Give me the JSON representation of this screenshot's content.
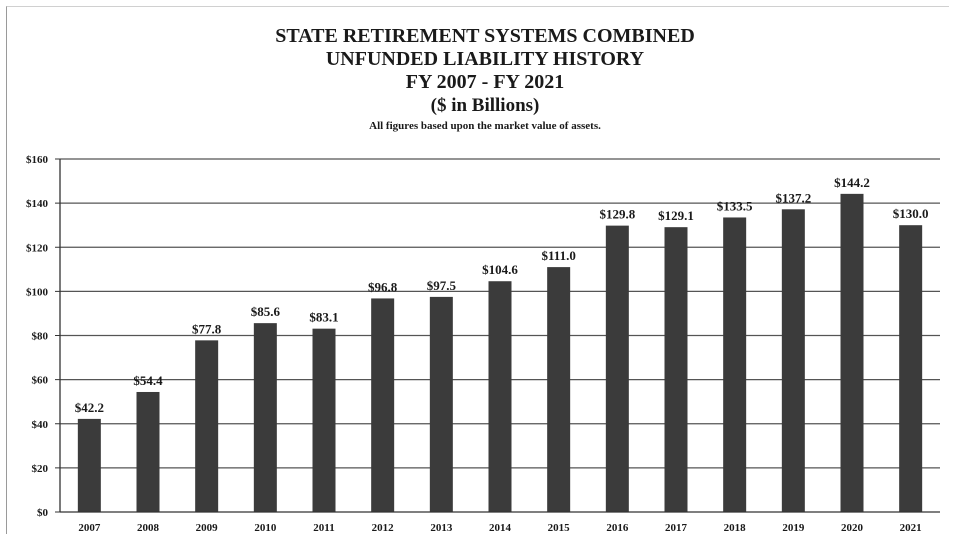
{
  "chart_data": {
    "type": "bar",
    "title_lines": [
      "STATE RETIREMENT SYSTEMS COMBINED",
      "UNFUNDED LIABILITY HISTORY",
      "FY 2007 - FY 2021",
      "($ in Billions)"
    ],
    "note": "All figures based upon the market value of assets.",
    "xlabel": "",
    "ylabel": "",
    "categories": [
      "2007",
      "2008",
      "2009",
      "2010",
      "2011",
      "2012",
      "2013",
      "2014",
      "2015",
      "2016",
      "2017",
      "2018",
      "2019",
      "2020",
      "2021"
    ],
    "values": [
      42.2,
      54.4,
      77.8,
      85.6,
      83.1,
      96.8,
      97.5,
      104.6,
      111.0,
      129.8,
      129.1,
      133.5,
      137.2,
      144.2,
      130.0
    ],
    "value_labels": [
      "$42.2",
      "$54.4",
      "$77.8",
      "$85.6",
      "$83.1",
      "$96.8",
      "$97.5",
      "$104.6",
      "$111.0",
      "$129.8",
      "$129.1",
      "$133.5",
      "$137.2",
      "$144.2",
      "$130.0"
    ],
    "ylim": [
      0,
      160
    ],
    "y_ticks": [
      0,
      20,
      40,
      60,
      80,
      100,
      120,
      140,
      160
    ],
    "y_tick_labels": [
      "$0",
      "$20",
      "$40",
      "$60",
      "$80",
      "$100",
      "$120",
      "$140",
      "$160"
    ],
    "grid": true,
    "legend": "none",
    "colors": {
      "bar": "#3b3b3b",
      "grid": "#555555",
      "text": "#1a1a1a",
      "background": "#ffffff"
    }
  }
}
